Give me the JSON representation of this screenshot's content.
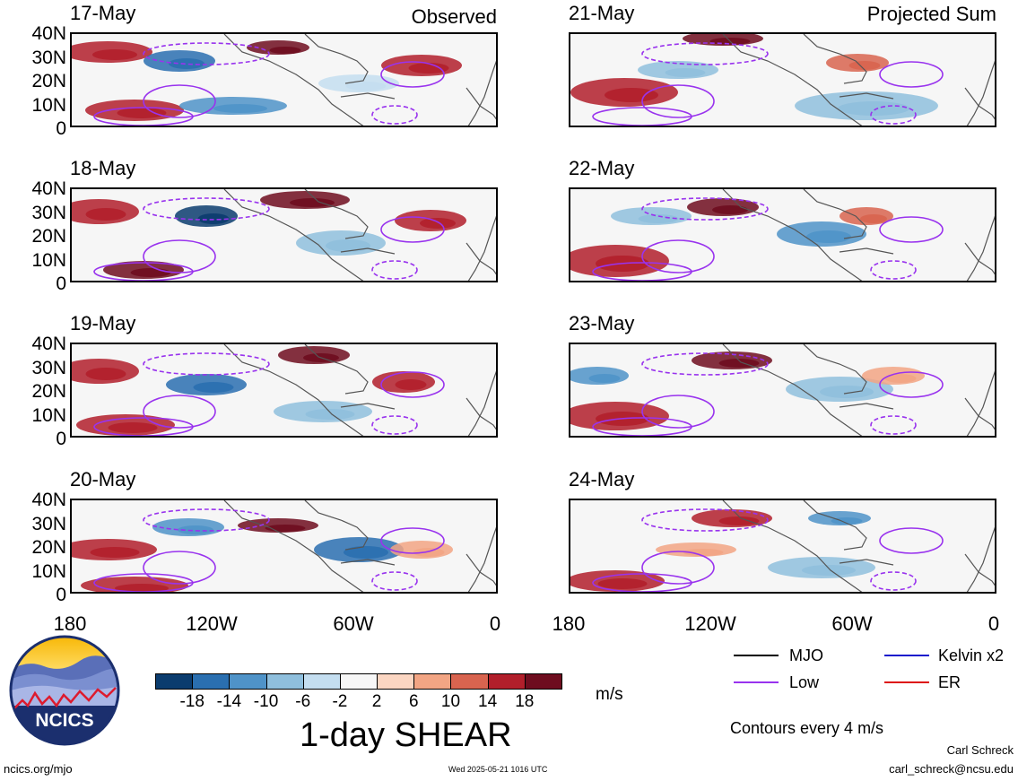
{
  "observed_label": "Observed",
  "projected_label": "Projected Sum",
  "panels_left": [
    "17-May",
    "18-May",
    "19-May",
    "20-May"
  ],
  "panels_right": [
    "21-May",
    "22-May",
    "23-May",
    "24-May"
  ],
  "lat_labels": [
    "40N",
    "30N",
    "20N",
    "10N",
    "0"
  ],
  "lon_labels": [
    "180",
    "120W",
    "60W",
    "0"
  ],
  "colorbar": {
    "colors": [
      "#0b3c6e",
      "#2a6fb0",
      "#4f93c8",
      "#8fbfdd",
      "#c4def0",
      "#f7f7f7",
      "#fbd6c2",
      "#f2a584",
      "#d8644f",
      "#b11f2b",
      "#6e0d1f"
    ],
    "ticks": [
      "-18",
      "-14",
      "-10",
      "-6",
      "-2",
      "2",
      "6",
      "10",
      "14",
      "18"
    ],
    "units": "m/s",
    "title": "1-day SHEAR"
  },
  "legend": {
    "items": [
      {
        "label": "MJO",
        "color": "#000000"
      },
      {
        "label": "Kelvin x2",
        "color": "#1a1acc"
      },
      {
        "label": "Low",
        "color": "#9933ee"
      },
      {
        "label": "ER",
        "color": "#dd1111"
      }
    ],
    "contours_note": "Contours every 4 m/s"
  },
  "footer": {
    "website": "ncics.org/mjo",
    "timestamp": "Wed 2025-05-21 1016 UTC",
    "author": "Carl Schreck",
    "email": "carl_schreck@ncsu.edu",
    "logo_text": "NCICS"
  }
}
